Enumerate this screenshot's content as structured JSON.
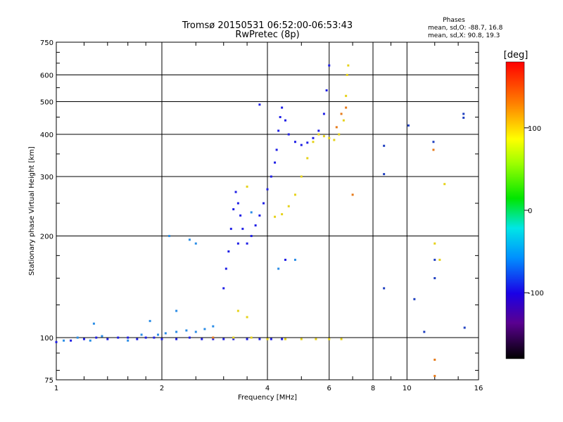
{
  "chart_data": {
    "type": "scatter",
    "title": "Tromsø 20150531 06:52:00-06:53:43",
    "subtitle": "RwPretec (8p)",
    "xlabel": "Frequency [MHz]",
    "ylabel": "Stationary phase Virtual Height [km]",
    "x_scale": "log",
    "y_scale": "log",
    "xlim": [
      1,
      16
    ],
    "ylim": [
      75,
      750
    ],
    "x_ticks": [
      1,
      2,
      4,
      6,
      8,
      10,
      16
    ],
    "x_tick_labels": [
      "1",
      "2",
      "4",
      "6",
      "8",
      "10",
      "16"
    ],
    "y_ticks": [
      75,
      100,
      200,
      300,
      400,
      500,
      600,
      750
    ],
    "y_tick_labels": [
      "75",
      "100",
      "200",
      "300",
      "400",
      "500",
      "600",
      "750"
    ],
    "grid": true,
    "phase_stats": {
      "title": "Phases",
      "line_o": "mean, sd,O: -88.7, 16.8",
      "line_x": "mean, sd,X: 90.8, 19.3"
    },
    "colorbar": {
      "label": "[deg]",
      "range": [
        -180,
        180
      ],
      "ticks": [
        100,
        0,
        -100
      ],
      "tick_labels": [
        "100",
        "0",
        "-100"
      ]
    },
    "series": [
      {
        "mode": "O",
        "color": "#1f1fe6",
        "points": [
          [
            1.0,
            97
          ],
          [
            1.1,
            98
          ],
          [
            1.2,
            99
          ],
          [
            1.3,
            100
          ],
          [
            1.4,
            99
          ],
          [
            1.5,
            100
          ],
          [
            1.6,
            100
          ],
          [
            1.7,
            99
          ],
          [
            1.8,
            100
          ],
          [
            1.9,
            100
          ],
          [
            2.0,
            99
          ],
          [
            2.2,
            99
          ],
          [
            2.4,
            100
          ],
          [
            2.6,
            99
          ],
          [
            2.8,
            99
          ],
          [
            3.0,
            99
          ],
          [
            3.2,
            99
          ],
          [
            3.5,
            99
          ],
          [
            3.8,
            99
          ],
          [
            4.1,
            99
          ],
          [
            4.4,
            99
          ],
          [
            3.0,
            140
          ],
          [
            3.05,
            160
          ],
          [
            3.1,
            180
          ],
          [
            3.15,
            210
          ],
          [
            3.2,
            240
          ],
          [
            3.25,
            270
          ],
          [
            3.3,
            250
          ],
          [
            3.35,
            230
          ],
          [
            3.4,
            210
          ],
          [
            3.5,
            190
          ],
          [
            3.6,
            200
          ],
          [
            3.7,
            215
          ],
          [
            3.8,
            230
          ],
          [
            3.9,
            250
          ],
          [
            4.0,
            275
          ],
          [
            4.1,
            300
          ],
          [
            4.2,
            330
          ],
          [
            4.25,
            360
          ],
          [
            4.3,
            410
          ],
          [
            4.35,
            450
          ],
          [
            4.4,
            480
          ],
          [
            4.5,
            440
          ],
          [
            4.6,
            400
          ],
          [
            4.8,
            380
          ],
          [
            5.0,
            372
          ],
          [
            5.2,
            378
          ],
          [
            5.4,
            390
          ],
          [
            5.6,
            410
          ],
          [
            5.8,
            460
          ],
          [
            5.9,
            540
          ],
          [
            6.0,
            640
          ],
          [
            4.5,
            170
          ],
          [
            3.3,
            190
          ],
          [
            3.8,
            490
          ]
        ]
      },
      {
        "mode": "O-weak",
        "color": "#2a8de6",
        "points": [
          [
            1.05,
            98
          ],
          [
            1.15,
            100
          ],
          [
            1.25,
            98
          ],
          [
            1.35,
            101
          ],
          [
            1.6,
            98
          ],
          [
            1.75,
            102
          ],
          [
            1.95,
            102
          ],
          [
            2.05,
            103
          ],
          [
            2.2,
            104
          ],
          [
            2.35,
            105
          ],
          [
            2.5,
            104
          ],
          [
            2.65,
            106
          ],
          [
            2.8,
            108
          ],
          [
            2.1,
            200
          ],
          [
            2.4,
            195
          ],
          [
            2.5,
            190
          ],
          [
            2.2,
            120
          ],
          [
            1.85,
            112
          ],
          [
            1.28,
            110
          ],
          [
            3.6,
            235
          ],
          [
            4.8,
            170
          ],
          [
            4.3,
            160
          ]
        ]
      },
      {
        "mode": "X",
        "color": "#e6d21a",
        "points": [
          [
            3.2,
            100
          ],
          [
            3.6,
            100
          ],
          [
            4.0,
            99
          ],
          [
            4.5,
            99
          ],
          [
            5.0,
            99
          ],
          [
            5.5,
            99
          ],
          [
            6.0,
            99
          ],
          [
            6.5,
            99
          ],
          [
            3.5,
            115
          ],
          [
            3.3,
            120
          ],
          [
            4.2,
            228
          ],
          [
            4.4,
            232
          ],
          [
            4.6,
            245
          ],
          [
            4.8,
            265
          ],
          [
            5.0,
            300
          ],
          [
            5.2,
            340
          ],
          [
            5.4,
            380
          ],
          [
            5.6,
            400
          ],
          [
            5.8,
            395
          ],
          [
            6.0,
            390
          ],
          [
            6.2,
            385
          ],
          [
            6.4,
            400
          ],
          [
            6.6,
            440
          ],
          [
            6.7,
            520
          ],
          [
            6.75,
            600
          ],
          [
            6.8,
            640
          ],
          [
            12.0,
            190
          ],
          [
            12.4,
            170
          ],
          [
            12.8,
            285
          ],
          [
            3.5,
            280
          ]
        ]
      },
      {
        "mode": "mixed",
        "color": "#e67a1a",
        "points": [
          [
            6.3,
            420
          ],
          [
            6.5,
            460
          ],
          [
            6.7,
            480
          ],
          [
            11.9,
            360
          ],
          [
            12.0,
            86
          ],
          [
            12.0,
            77
          ],
          [
            2.8,
            100
          ],
          [
            7.0,
            265
          ]
        ]
      },
      {
        "mode": "noise",
        "color": "#2040c0",
        "points": [
          [
            8.6,
            370
          ],
          [
            8.6,
            140
          ],
          [
            10.1,
            425
          ],
          [
            10.5,
            130
          ],
          [
            11.2,
            104
          ],
          [
            11.9,
            380
          ],
          [
            12.0,
            170
          ],
          [
            12.0,
            150
          ],
          [
            14.5,
            460
          ],
          [
            14.5,
            448
          ],
          [
            14.6,
            107
          ],
          [
            8.6,
            305
          ]
        ]
      }
    ]
  }
}
